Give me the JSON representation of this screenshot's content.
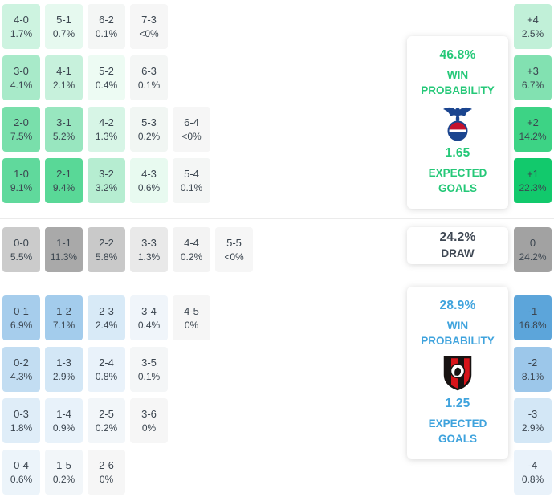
{
  "theme": {
    "home_accent": "#25c878",
    "away_accent": "#3fa3dd",
    "draw_text": "#3e4753",
    "cell_text": "#3c4650",
    "divider": "#ebebeb",
    "card_bg": "#ffffff"
  },
  "icons": {
    "home_logo": "crystal-palace-crest",
    "away_logo": "afc-bournemouth-crest"
  },
  "sections": {
    "home": {
      "card": {
        "win_probability": "46.8%",
        "win_label": "WIN PROBABILITY",
        "expected_goals": "1.65",
        "expected_goals_label": "EXPECTED GOALS"
      },
      "rows": [
        [
          {
            "score": "4-0",
            "pct": "1.7%",
            "bg": "#cdf3e0"
          },
          {
            "score": "5-1",
            "pct": "0.7%",
            "bg": "#e6f9ef"
          },
          {
            "score": "6-2",
            "pct": "0.1%",
            "bg": "#f4f6f5"
          },
          {
            "score": "7-3",
            "pct": "<0%",
            "bg": "#f6f6f6"
          }
        ],
        [
          {
            "score": "3-0",
            "pct": "4.1%",
            "bg": "#a8eac9"
          },
          {
            "score": "4-1",
            "pct": "2.1%",
            "bg": "#c7f1dc"
          },
          {
            "score": "5-2",
            "pct": "0.4%",
            "bg": "#edfbf3"
          },
          {
            "score": "6-3",
            "pct": "0.1%",
            "bg": "#f4f6f5"
          }
        ],
        [
          {
            "score": "2-0",
            "pct": "7.5%",
            "bg": "#79dfab"
          },
          {
            "score": "3-1",
            "pct": "5.2%",
            "bg": "#98e6bf"
          },
          {
            "score": "4-2",
            "pct": "1.3%",
            "bg": "#d7f5e6"
          },
          {
            "score": "5-3",
            "pct": "0.2%",
            "bg": "#f1f6f3"
          },
          {
            "score": "6-4",
            "pct": "<0%",
            "bg": "#f6f6f6"
          }
        ],
        [
          {
            "score": "1-0",
            "pct": "9.1%",
            "bg": "#60d99c"
          },
          {
            "score": "2-1",
            "pct": "9.4%",
            "bg": "#59d897"
          },
          {
            "score": "3-2",
            "pct": "3.2%",
            "bg": "#b6edd1"
          },
          {
            "score": "4-3",
            "pct": "0.6%",
            "bg": "#e8faf0"
          },
          {
            "score": "5-4",
            "pct": "0.1%",
            "bg": "#f4f6f5"
          }
        ]
      ],
      "diffs": [
        {
          "score": "+4",
          "pct": "2.5%",
          "bg": "#c1f0d8"
        },
        {
          "score": "+3",
          "pct": "6.7%",
          "bg": "#82e1b1"
        },
        {
          "score": "+2",
          "pct": "14.2%",
          "bg": "#3dd385"
        },
        {
          "score": "+1",
          "pct": "22.3%",
          "bg": "#12c96c"
        }
      ]
    },
    "draw": {
      "card": {
        "probability": "24.2%",
        "label": "DRAW"
      },
      "rows": [
        [
          {
            "score": "0-0",
            "pct": "5.5%",
            "bg": "#cbcbcb"
          },
          {
            "score": "1-1",
            "pct": "11.3%",
            "bg": "#a9a9a9"
          },
          {
            "score": "2-2",
            "pct": "5.8%",
            "bg": "#c9c9c9"
          },
          {
            "score": "3-3",
            "pct": "1.3%",
            "bg": "#e9e9e9"
          },
          {
            "score": "4-4",
            "pct": "0.2%",
            "bg": "#f3f3f3"
          },
          {
            "score": "5-5",
            "pct": "<0%",
            "bg": "#f6f6f6"
          }
        ]
      ],
      "diffs": [
        {
          "score": "0",
          "pct": "24.2%",
          "bg": "#a2a2a2"
        }
      ]
    },
    "away": {
      "card": {
        "win_probability": "28.9%",
        "win_label": "WIN PROBABILITY",
        "expected_goals": "1.25",
        "expected_goals_label": "EXPECTED GOALS"
      },
      "rows": [
        [
          {
            "score": "0-1",
            "pct": "6.9%",
            "bg": "#a6cdec"
          },
          {
            "score": "1-2",
            "pct": "7.1%",
            "bg": "#a3ccec"
          },
          {
            "score": "2-3",
            "pct": "2.4%",
            "bg": "#d8eaf7"
          },
          {
            "score": "3-4",
            "pct": "0.4%",
            "bg": "#f0f5fa"
          },
          {
            "score": "4-5",
            "pct": "0%",
            "bg": "#f6f6f6"
          }
        ],
        [
          {
            "score": "0-2",
            "pct": "4.3%",
            "bg": "#c2ddf2"
          },
          {
            "score": "1-3",
            "pct": "2.9%",
            "bg": "#d3e7f6"
          },
          {
            "score": "2-4",
            "pct": "0.8%",
            "bg": "#e9f2fa"
          },
          {
            "score": "3-5",
            "pct": "0.1%",
            "bg": "#f4f6f7"
          }
        ],
        [
          {
            "score": "0-3",
            "pct": "1.8%",
            "bg": "#dfedf8"
          },
          {
            "score": "1-4",
            "pct": "0.9%",
            "bg": "#e8f2fa"
          },
          {
            "score": "2-5",
            "pct": "0.2%",
            "bg": "#f2f6f9"
          },
          {
            "score": "3-6",
            "pct": "0%",
            "bg": "#f6f6f6"
          }
        ],
        [
          {
            "score": "0-4",
            "pct": "0.6%",
            "bg": "#ecf4fa"
          },
          {
            "score": "1-5",
            "pct": "0.2%",
            "bg": "#f2f6f9"
          },
          {
            "score": "2-6",
            "pct": "0%",
            "bg": "#f6f6f6"
          }
        ]
      ],
      "diffs": [
        {
          "score": "-1",
          "pct": "16.8%",
          "bg": "#5ca5da"
        },
        {
          "score": "-2",
          "pct": "8.1%",
          "bg": "#9cc7ea"
        },
        {
          "score": "-3",
          "pct": "2.9%",
          "bg": "#d3e7f6"
        },
        {
          "score": "-4",
          "pct": "0.8%",
          "bg": "#e9f2fa"
        }
      ]
    }
  },
  "chart_data": {
    "type": "heatmap",
    "title": "Correct score probability matrix with win/draw probabilities and expected goals",
    "home": {
      "win_probability_pct": 46.8,
      "expected_goals": 1.65,
      "team_crest": "crystal-palace-crest",
      "scores": [
        {
          "score": "4-0",
          "pct": 1.7
        },
        {
          "score": "5-1",
          "pct": 0.7
        },
        {
          "score": "6-2",
          "pct": 0.1
        },
        {
          "score": "7-3",
          "pct": "<0"
        },
        {
          "score": "3-0",
          "pct": 4.1
        },
        {
          "score": "4-1",
          "pct": 2.1
        },
        {
          "score": "5-2",
          "pct": 0.4
        },
        {
          "score": "6-3",
          "pct": 0.1
        },
        {
          "score": "2-0",
          "pct": 7.5
        },
        {
          "score": "3-1",
          "pct": 5.2
        },
        {
          "score": "4-2",
          "pct": 1.3
        },
        {
          "score": "5-3",
          "pct": 0.2
        },
        {
          "score": "6-4",
          "pct": "<0"
        },
        {
          "score": "1-0",
          "pct": 9.1
        },
        {
          "score": "2-1",
          "pct": 9.4
        },
        {
          "score": "3-2",
          "pct": 3.2
        },
        {
          "score": "4-3",
          "pct": 0.6
        },
        {
          "score": "5-4",
          "pct": 0.1
        }
      ],
      "goal_difference": [
        {
          "diff": "+4",
          "pct": 2.5
        },
        {
          "diff": "+3",
          "pct": 6.7
        },
        {
          "diff": "+2",
          "pct": 14.2
        },
        {
          "diff": "+1",
          "pct": 22.3
        }
      ]
    },
    "draw": {
      "probability_pct": 24.2,
      "scores": [
        {
          "score": "0-0",
          "pct": 5.5
        },
        {
          "score": "1-1",
          "pct": 11.3
        },
        {
          "score": "2-2",
          "pct": 5.8
        },
        {
          "score": "3-3",
          "pct": 1.3
        },
        {
          "score": "4-4",
          "pct": 0.2
        },
        {
          "score": "5-5",
          "pct": "<0"
        }
      ],
      "goal_difference": [
        {
          "diff": "0",
          "pct": 24.2
        }
      ]
    },
    "away": {
      "win_probability_pct": 28.9,
      "expected_goals": 1.25,
      "team_crest": "afc-bournemouth-crest",
      "scores": [
        {
          "score": "0-1",
          "pct": 6.9
        },
        {
          "score": "1-2",
          "pct": 7.1
        },
        {
          "score": "2-3",
          "pct": 2.4
        },
        {
          "score": "3-4",
          "pct": 0.4
        },
        {
          "score": "4-5",
          "pct": 0
        },
        {
          "score": "0-2",
          "pct": 4.3
        },
        {
          "score": "1-3",
          "pct": 2.9
        },
        {
          "score": "2-4",
          "pct": 0.8
        },
        {
          "score": "3-5",
          "pct": 0.1
        },
        {
          "score": "0-3",
          "pct": 1.8
        },
        {
          "score": "1-4",
          "pct": 0.9
        },
        {
          "score": "2-5",
          "pct": 0.2
        },
        {
          "score": "3-6",
          "pct": 0
        },
        {
          "score": "0-4",
          "pct": 0.6
        },
        {
          "score": "1-5",
          "pct": 0.2
        },
        {
          "score": "2-6",
          "pct": 0
        }
      ],
      "goal_difference": [
        {
          "diff": "-1",
          "pct": 16.8
        },
        {
          "diff": "-2",
          "pct": 8.1
        },
        {
          "diff": "-3",
          "pct": 2.9
        },
        {
          "diff": "-4",
          "pct": 0.8
        }
      ]
    }
  }
}
